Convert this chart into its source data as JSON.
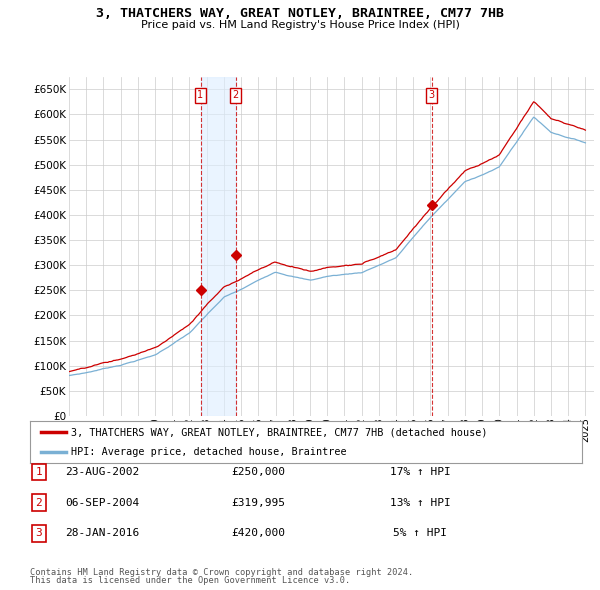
{
  "title": "3, THATCHERS WAY, GREAT NOTLEY, BRAINTREE, CM77 7HB",
  "subtitle": "Price paid vs. HM Land Registry's House Price Index (HPI)",
  "ylim": [
    0,
    675000
  ],
  "ytick_vals": [
    0,
    50000,
    100000,
    150000,
    200000,
    250000,
    300000,
    350000,
    400000,
    450000,
    500000,
    550000,
    600000,
    650000
  ],
  "ytick_labels": [
    "£0",
    "£50K",
    "£100K",
    "£150K",
    "£200K",
    "£250K",
    "£300K",
    "£350K",
    "£400K",
    "£450K",
    "£500K",
    "£550K",
    "£600K",
    "£650K"
  ],
  "xlim": [
    1995.0,
    2025.5
  ],
  "xtick_years": [
    1995,
    1996,
    1997,
    1998,
    1999,
    2000,
    2001,
    2002,
    2003,
    2004,
    2005,
    2006,
    2007,
    2008,
    2009,
    2010,
    2011,
    2012,
    2013,
    2014,
    2015,
    2016,
    2017,
    2018,
    2019,
    2020,
    2021,
    2022,
    2023,
    2024,
    2025
  ],
  "bg_color": "#ffffff",
  "grid_color": "#cccccc",
  "line_color_sold": "#cc0000",
  "line_color_hpi": "#7ab0d4",
  "shade_color": "#ddeeff",
  "transactions": [
    {
      "num": 1,
      "date_x": 2002.64,
      "price": 250000
    },
    {
      "num": 2,
      "date_x": 2004.68,
      "price": 319995
    },
    {
      "num": 3,
      "date_x": 2016.07,
      "price": 420000
    }
  ],
  "legend_sold": "3, THATCHERS WAY, GREAT NOTLEY, BRAINTREE, CM77 7HB (detached house)",
  "legend_hpi": "HPI: Average price, detached house, Braintree",
  "footer1": "Contains HM Land Registry data © Crown copyright and database right 2024.",
  "footer2": "This data is licensed under the Open Government Licence v3.0.",
  "table_rows": [
    {
      "num": "1",
      "date": "23-AUG-2002",
      "price": "£250,000",
      "change": "17% ↑ HPI"
    },
    {
      "num": "2",
      "date": "06-SEP-2004",
      "price": "£319,995",
      "change": "13% ↑ HPI"
    },
    {
      "num": "3",
      "date": "28-JAN-2016",
      "price": "£420,000",
      "change": "5% ↑ HPI"
    }
  ]
}
